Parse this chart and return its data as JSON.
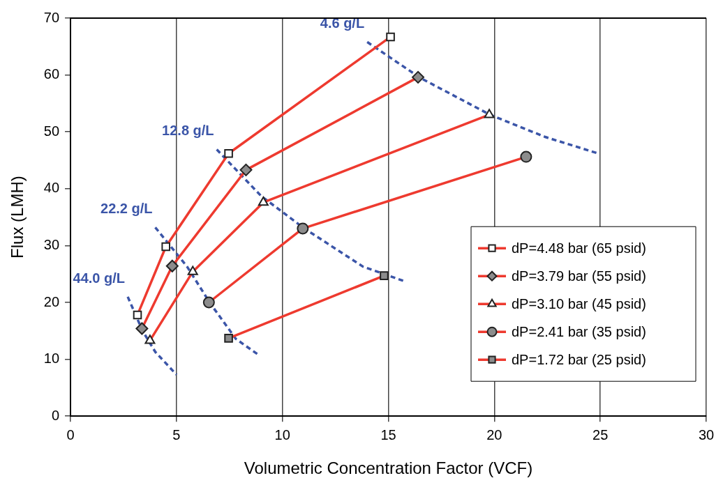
{
  "chart_data": {
    "type": "line",
    "xlabel": "Volumetric Concentration Factor (VCF)",
    "ylabel": "Flux (LMH)",
    "xlim": [
      0,
      30
    ],
    "xticks": [
      0,
      5,
      10,
      15,
      20,
      25,
      30
    ],
    "ylim": [
      0,
      70
    ],
    "yticks": [
      0,
      10,
      20,
      30,
      40,
      50,
      60,
      70
    ],
    "grid": "x",
    "legend": "bottom right",
    "line_style": "solid",
    "series": [
      {
        "name": "dP=4.48 bar (65 psid)",
        "color": "#ee3a2f",
        "marker": "square",
        "x": [
          3.16,
          4.5,
          7.46,
          15.1
        ],
        "values": [
          17.8,
          29.8,
          46.2,
          66.7
        ],
        "colors": [
          "#ffffff",
          "#ffffff",
          "#ffffff",
          "#ffffff"
        ]
      },
      {
        "name": "dP=3.79 bar (55 psid)",
        "color": "#ee3a2f",
        "marker": "diamond",
        "x": [
          3.37,
          4.8,
          8.28,
          16.4
        ],
        "values": [
          15.4,
          26.4,
          43.3,
          59.6
        ],
        "colors": [
          "#8c8c8c",
          "#8c8c8c",
          "#8c8c8c",
          "#8c8c8c"
        ]
      },
      {
        "name": "dP=3.10 bar (45 psid)",
        "color": "#ee3a2f",
        "marker": "triangle",
        "x": [
          3.75,
          5.77,
          9.1,
          19.76
        ],
        "values": [
          13.3,
          25.4,
          37.6,
          53.0
        ],
        "colors": [
          "#ffffff",
          "#ffffff",
          "#ffffff",
          "#ffffff"
        ]
      },
      {
        "name": "dP=2.41 bar (35 psid)",
        "color": "#ee3a2f",
        "marker": "circle",
        "x": [
          6.53,
          10.96,
          21.5
        ],
        "values": [
          20.0,
          33.0,
          45.6
        ],
        "colors": [
          "#8c8c8c",
          "#8c8c8c",
          "#8c8c8c"
        ]
      },
      {
        "name": "dP=1.72 bar (25 psid)",
        "color": "#ee3a2f",
        "marker": "square",
        "x": [
          7.46,
          14.8
        ],
        "values": [
          13.7,
          24.7
        ],
        "colors": [
          "#8c8c8c",
          "#8c8c8c"
        ]
      },
      {
        "name": "44.0 g/L",
        "color": "#3b55a8",
        "marker": "none",
        "line_style": "dashed",
        "x": [
          2.7,
          3.4,
          4.0,
          5.0
        ],
        "values": [
          21.0,
          15.0,
          11.3,
          7.3
        ]
      },
      {
        "name": "22.2 g/L",
        "color": "#3b55a8",
        "marker": "none",
        "line_style": "dashed",
        "x": [
          4.0,
          5.5,
          6.6,
          7.8,
          8.9
        ],
        "values": [
          33.2,
          26.3,
          19.8,
          13.6,
          10.7
        ]
      },
      {
        "name": "12.8 g/L",
        "color": "#3b55a8",
        "marker": "none",
        "line_style": "dashed",
        "x": [
          6.9,
          9.0,
          11.0,
          13.8,
          15.7
        ],
        "values": [
          46.9,
          38.7,
          33.1,
          26.3,
          23.8
        ]
      },
      {
        "name": "4.6 g/L",
        "color": "#3b55a8",
        "marker": "none",
        "line_style": "dashed",
        "x": [
          14.0,
          16.5,
          19.8,
          22.4,
          24.9
        ],
        "values": [
          65.8,
          59.5,
          53.0,
          49.1,
          46.2
        ]
      }
    ]
  }
}
